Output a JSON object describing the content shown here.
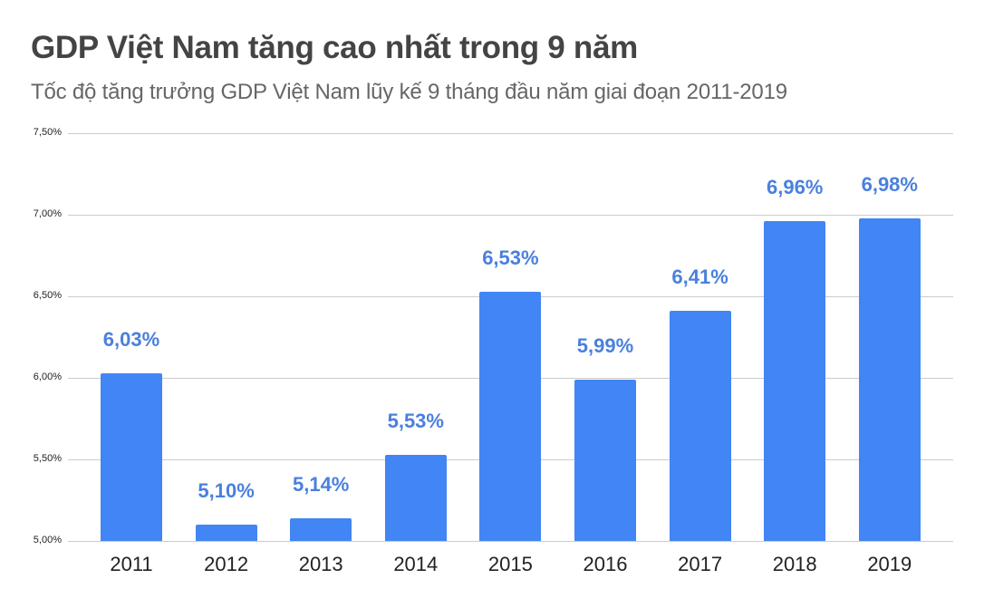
{
  "header": {
    "title": "GDP Việt Nam tăng cao nhất trong 9 năm",
    "subtitle": "Tốc độ tăng trưởng GDP Việt Nam lũy kế 9 tháng đầu năm giai đoạn 2011-2019"
  },
  "colors": {
    "bar": "#4285f4",
    "data_label": "#4a80dd",
    "title": "#444444",
    "subtitle": "#666666",
    "grid": "#cccccc"
  },
  "axis": {
    "y_ticks": [
      "7,50%",
      "7,00%",
      "6,50%",
      "6,00%",
      "5,50%",
      "5,00%"
    ]
  },
  "bars": [
    {
      "year": "2011",
      "label": "6,03%"
    },
    {
      "year": "2012",
      "label": "5,10%"
    },
    {
      "year": "2013",
      "label": "5,14%"
    },
    {
      "year": "2014",
      "label": "5,53%"
    },
    {
      "year": "2015",
      "label": "6,53%"
    },
    {
      "year": "2016",
      "label": "5,99%"
    },
    {
      "year": "2017",
      "label": "6,41%"
    },
    {
      "year": "2018",
      "label": "6,96%"
    },
    {
      "year": "2019",
      "label": "6,98%"
    }
  ],
  "chart_data": {
    "type": "bar",
    "title": "GDP Việt Nam tăng cao nhất trong 9 năm",
    "subtitle": "Tốc độ tăng trưởng GDP Việt Nam lũy kế 9 tháng đầu năm giai đoạn 2011-2019",
    "categories": [
      "2011",
      "2012",
      "2013",
      "2014",
      "2015",
      "2016",
      "2017",
      "2018",
      "2019"
    ],
    "values": [
      6.03,
      5.1,
      5.14,
      5.53,
      6.53,
      5.99,
      6.41,
      6.96,
      6.98
    ],
    "data_labels": [
      "6,03%",
      "5,10%",
      "5,14%",
      "5,53%",
      "6,53%",
      "5,99%",
      "6,41%",
      "6,96%",
      "6,98%"
    ],
    "xlabel": "",
    "ylabel": "",
    "ylim": [
      5.0,
      7.5
    ],
    "y_ticks": [
      5.0,
      5.5,
      6.0,
      6.5,
      7.0,
      7.5
    ],
    "y_tick_labels": [
      "5,00%",
      "5,50%",
      "6,00%",
      "6,50%",
      "7,00%",
      "7,50%"
    ],
    "grid": true,
    "legend": "none",
    "unit": "%"
  }
}
